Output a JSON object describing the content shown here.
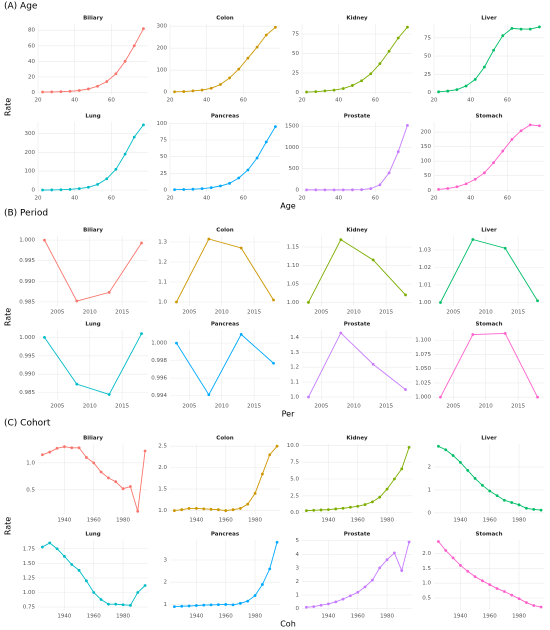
{
  "sections": [
    {
      "label": "(A) Age",
      "y_label": "Rate",
      "x_label": "Age"
    },
    {
      "label": "(B) Period",
      "y_label": "Rate",
      "x_label": "Per"
    },
    {
      "label": "(C) Cohort",
      "y_label": "Rate",
      "x_label": "Coh"
    }
  ],
  "chart_data": [
    {
      "type": "line",
      "title": "Biliary",
      "color": "#F8766D",
      "x": [
        22.5,
        27.5,
        32.5,
        37.5,
        42.5,
        47.5,
        52.5,
        57.5,
        62.5,
        67.5,
        72.5,
        77.5
      ],
      "values": [
        0.5,
        0.7,
        1,
        1.5,
        2.5,
        4.5,
        8,
        14,
        24,
        40,
        60,
        82
      ],
      "xlim": [
        20,
        80
      ],
      "xticks": [
        20,
        40,
        60
      ],
      "ylim": [
        -2,
        88
      ],
      "yticks": [
        0,
        20,
        40,
        60,
        80
      ],
      "grid": true
    },
    {
      "type": "line",
      "title": "Colon",
      "color": "#CD9600",
      "x": [
        22.5,
        27.5,
        32.5,
        37.5,
        42.5,
        47.5,
        52.5,
        57.5,
        62.5,
        67.5,
        72.5,
        77.5
      ],
      "values": [
        2,
        3,
        6,
        10,
        18,
        35,
        65,
        105,
        155,
        205,
        260,
        295
      ],
      "xlim": [
        20,
        80
      ],
      "xticks": [
        20,
        40,
        60
      ],
      "ylim": [
        -8,
        310
      ],
      "yticks": [
        0,
        100,
        200,
        300
      ],
      "grid": true
    },
    {
      "type": "line",
      "title": "Kidney",
      "color": "#7CAE00",
      "x": [
        22.5,
        27.5,
        32.5,
        37.5,
        42.5,
        47.5,
        52.5,
        57.5,
        62.5,
        67.5,
        72.5,
        77.5
      ],
      "values": [
        0.5,
        1,
        2,
        3,
        5,
        9,
        15,
        24,
        37,
        53,
        70,
        84
      ],
      "xlim": [
        20,
        80
      ],
      "xticks": [
        20,
        40,
        60
      ],
      "ylim": [
        -2,
        88
      ],
      "yticks": [
        0,
        25,
        50,
        75
      ],
      "grid": true
    },
    {
      "type": "line",
      "title": "Liver",
      "color": "#00BE67",
      "x": [
        22.5,
        27.5,
        32.5,
        37.5,
        42.5,
        47.5,
        52.5,
        57.5,
        62.5,
        67.5,
        72.5,
        77.5
      ],
      "values": [
        1,
        2,
        4,
        9,
        18,
        35,
        58,
        78,
        88,
        87,
        87,
        90
      ],
      "xlim": [
        20,
        80
      ],
      "xticks": [
        20,
        40,
        60
      ],
      "ylim": [
        -2,
        94
      ],
      "yticks": [
        0,
        25,
        50,
        75
      ],
      "grid": true
    },
    {
      "type": "line",
      "title": "Lung",
      "color": "#00BCC8",
      "x": [
        22.5,
        27.5,
        32.5,
        37.5,
        42.5,
        47.5,
        52.5,
        57.5,
        62.5,
        67.5,
        72.5,
        77.5
      ],
      "values": [
        0.5,
        1,
        2,
        4,
        8,
        15,
        30,
        60,
        110,
        190,
        280,
        345
      ],
      "xlim": [
        20,
        80
      ],
      "xticks": [
        20,
        40,
        60
      ],
      "ylim": [
        -10,
        360
      ],
      "yticks": [
        0,
        100,
        200,
        300
      ],
      "grid": true
    },
    {
      "type": "line",
      "title": "Pancreas",
      "color": "#00A9FF",
      "x": [
        22.5,
        27.5,
        32.5,
        37.5,
        42.5,
        47.5,
        52.5,
        57.5,
        62.5,
        67.5,
        72.5,
        77.5
      ],
      "values": [
        0.5,
        0.8,
        1.2,
        2,
        3.5,
        6,
        10,
        18,
        30,
        48,
        72,
        95
      ],
      "xlim": [
        20,
        80
      ],
      "xticks": [
        20,
        40,
        60
      ],
      "ylim": [
        -3,
        102
      ],
      "yticks": [
        0,
        25,
        50,
        75,
        100
      ],
      "grid": true
    },
    {
      "type": "line",
      "title": "Prostate",
      "color": "#C77CFF",
      "x": [
        22.5,
        27.5,
        32.5,
        37.5,
        42.5,
        47.5,
        52.5,
        57.5,
        62.5,
        67.5,
        72.5,
        77.5
      ],
      "values": [
        0,
        0,
        0,
        0,
        0,
        1,
        5,
        30,
        120,
        400,
        900,
        1520
      ],
      "xlim": [
        20,
        80
      ],
      "xticks": [
        20,
        40,
        60
      ],
      "ylim": [
        -50,
        1600
      ],
      "yticks": [
        0,
        500,
        1000,
        1500
      ],
      "grid": true
    },
    {
      "type": "line",
      "title": "Stomach",
      "color": "#FF61CC",
      "x": [
        22.5,
        27.5,
        32.5,
        37.5,
        42.5,
        47.5,
        52.5,
        57.5,
        62.5,
        67.5,
        72.5,
        77.5
      ],
      "values": [
        3,
        6,
        12,
        22,
        38,
        60,
        95,
        135,
        175,
        205,
        225,
        222
      ],
      "xlim": [
        20,
        80
      ],
      "xticks": [
        20,
        40,
        60
      ],
      "ylim": [
        -6,
        235
      ],
      "yticks": [
        0,
        50,
        100,
        150,
        200
      ],
      "grid": true
    },
    {
      "type": "line",
      "title": "Biliary",
      "color": "#F8766D",
      "x": [
        2003,
        2008,
        2013,
        2018
      ],
      "values": [
        1.0,
        0.9852,
        0.9873,
        0.9993
      ],
      "xlim": [
        2002,
        2019
      ],
      "xticks": [
        2005,
        2010,
        2015
      ],
      "ylim": [
        0.984,
        1.001
      ],
      "yticks": [
        0.985,
        {
          "value": 0.99,
          "label": "0.990"
        },
        0.995,
        {
          "value": 1,
          "label": "1.000"
        }
      ],
      "grid": true
    },
    {
      "type": "line",
      "title": "Colon",
      "color": "#CD9600",
      "x": [
        2003,
        2008,
        2013,
        2018
      ],
      "values": [
        1.0,
        1.315,
        1.27,
        1.01
      ],
      "xlim": [
        2002,
        2019
      ],
      "xticks": [
        2005,
        2010,
        2015
      ],
      "ylim": [
        0.98,
        1.33
      ],
      "yticks": [
        {
          "value": 1,
          "label": "1.0"
        },
        1.1,
        1.2,
        1.3
      ],
      "grid": true
    },
    {
      "type": "line",
      "title": "Kidney",
      "color": "#7CAE00",
      "x": [
        2003,
        2008,
        2013,
        2018
      ],
      "values": [
        1.0,
        1.17,
        1.115,
        1.02
      ],
      "xlim": [
        2002,
        2019
      ],
      "xticks": [
        2005,
        2010,
        2015
      ],
      "ylim": [
        0.99,
        1.18
      ],
      "yticks": [
        {
          "value": 1,
          "label": "1.00"
        },
        1.05,
        {
          "value": 1.1,
          "label": "1.10"
        },
        1.15
      ],
      "grid": true
    },
    {
      "type": "line",
      "title": "Liver",
      "color": "#00BE67",
      "x": [
        2003,
        2008,
        2013,
        2018
      ],
      "values": [
        1.0,
        1.036,
        1.031,
        1.001
      ],
      "xlim": [
        2002,
        2019
      ],
      "xticks": [
        2005,
        2010,
        2015
      ],
      "ylim": [
        0.998,
        1.038
      ],
      "yticks": [
        {
          "value": 1,
          "label": "1.00"
        },
        1.01,
        1.02,
        1.03
      ],
      "grid": true
    },
    {
      "type": "line",
      "title": "Lung",
      "color": "#00BCC8",
      "x": [
        2003,
        2008,
        2013,
        2018
      ],
      "values": [
        1.0,
        0.9873,
        0.9845,
        1.001
      ],
      "xlim": [
        2002,
        2019
      ],
      "xticks": [
        2005,
        2010,
        2015
      ],
      "ylim": [
        0.983,
        1.002
      ],
      "yticks": [
        0.985,
        {
          "value": 0.99,
          "label": "0.990"
        },
        0.995,
        {
          "value": 1,
          "label": "1.000"
        }
      ],
      "grid": true
    },
    {
      "type": "line",
      "title": "Pancreas",
      "color": "#00A9FF",
      "x": [
        2003,
        2008,
        2013,
        2018
      ],
      "values": [
        1.0,
        0.9941,
        1.001,
        0.9977
      ],
      "xlim": [
        2002,
        2019
      ],
      "xticks": [
        2005,
        2010,
        2015
      ],
      "ylim": [
        0.9935,
        1.0015
      ],
      "yticks": [
        0.994,
        0.996,
        0.998,
        {
          "value": 1,
          "label": "1.000"
        }
      ],
      "grid": true
    },
    {
      "type": "line",
      "title": "Prostate",
      "color": "#C77CFF",
      "x": [
        2003,
        2008,
        2013,
        2018
      ],
      "values": [
        1.0,
        1.43,
        1.22,
        1.05
      ],
      "xlim": [
        2002,
        2019
      ],
      "xticks": [
        2005,
        2010,
        2015
      ],
      "ylim": [
        0.98,
        1.45
      ],
      "yticks": [
        {
          "value": 1,
          "label": "1.0"
        },
        1.1,
        1.2,
        1.3,
        1.4
      ],
      "grid": true
    },
    {
      "type": "line",
      "title": "Stomach",
      "color": "#FF61CC",
      "x": [
        2003,
        2008,
        2013,
        2018
      ],
      "values": [
        1.0,
        1.11,
        1.112,
        1.0
      ],
      "xlim": [
        2002,
        2019
      ],
      "xticks": [
        2005,
        2010,
        2015
      ],
      "ylim": [
        0.995,
        1.118
      ],
      "yticks": [
        {
          "value": 1,
          "label": "1.000"
        },
        1.025,
        {
          "value": 1.05,
          "label": "1.050"
        },
        1.075,
        {
          "value": 1.1,
          "label": "1.100"
        }
      ],
      "grid": true
    },
    {
      "type": "line",
      "title": "Biliary",
      "color": "#F8766D",
      "x": [
        1925,
        1930,
        1935,
        1940,
        1945,
        1950,
        1955,
        1960,
        1965,
        1970,
        1975,
        1980,
        1985,
        1990,
        1995
      ],
      "values": [
        1.15,
        1.2,
        1.27,
        1.3,
        1.28,
        1.28,
        1.1,
        1.0,
        0.83,
        0.72,
        0.65,
        0.52,
        0.56,
        0.1,
        1.22
      ],
      "xlim": [
        1922,
        1997
      ],
      "xticks": [
        1940,
        1960,
        1980
      ],
      "ylim": [
        0.05,
        1.35
      ],
      "yticks": [
        0.5,
        {
          "value": 1,
          "label": "1.0"
        }
      ],
      "grid": true
    },
    {
      "type": "line",
      "title": "Colon",
      "color": "#CD9600",
      "x": [
        1925,
        1930,
        1935,
        1940,
        1945,
        1950,
        1955,
        1960,
        1965,
        1970,
        1975,
        1980,
        1985,
        1990,
        1995
      ],
      "values": [
        1.0,
        1.02,
        1.05,
        1.05,
        1.04,
        1.03,
        1.02,
        1.0,
        1.02,
        1.05,
        1.15,
        1.4,
        1.85,
        2.3,
        2.5
      ],
      "xlim": [
        1922,
        1997
      ],
      "xticks": [
        1940,
        1960,
        1980
      ],
      "ylim": [
        0.92,
        2.55
      ],
      "yticks": [
        {
          "value": 1,
          "label": "1.0"
        },
        1.5,
        {
          "value": 2,
          "label": "2.0"
        },
        2.5
      ],
      "grid": true
    },
    {
      "type": "line",
      "title": "Kidney",
      "color": "#7CAE00",
      "x": [
        1925,
        1930,
        1935,
        1940,
        1945,
        1950,
        1955,
        1960,
        1965,
        1970,
        1975,
        1980,
        1985,
        1990,
        1995
      ],
      "values": [
        0.3,
        0.35,
        0.4,
        0.45,
        0.55,
        0.65,
        0.8,
        0.95,
        1.2,
        1.6,
        2.3,
        3.5,
        5.0,
        6.5,
        9.7
      ],
      "xlim": [
        1922,
        1997
      ],
      "xticks": [
        1940,
        1960,
        1980
      ],
      "ylim": [
        -0.2,
        10.2
      ],
      "yticks": [
        {
          "value": 0,
          "label": "0.0"
        },
        2.5,
        {
          "value": 5,
          "label": "5.0"
        },
        7.5,
        {
          "value": 10,
          "label": "10.0"
        }
      ],
      "grid": true
    },
    {
      "type": "line",
      "title": "Liver",
      "color": "#00BE67",
      "x": [
        1925,
        1930,
        1935,
        1940,
        1945,
        1950,
        1955,
        1960,
        1965,
        1970,
        1975,
        1980,
        1985,
        1990,
        1995
      ],
      "values": [
        2.9,
        2.75,
        2.5,
        2.2,
        1.85,
        1.5,
        1.2,
        0.95,
        0.75,
        0.55,
        0.45,
        0.35,
        0.2,
        0.15,
        0.12
      ],
      "xlim": [
        1922,
        1997
      ],
      "xticks": [
        1940,
        1960,
        1980
      ],
      "ylim": [
        -0.05,
        3.0
      ],
      "yticks": [
        0,
        1,
        2
      ],
      "grid": true
    },
    {
      "type": "line",
      "title": "Lung",
      "color": "#00BCC8",
      "x": [
        1925,
        1930,
        1935,
        1940,
        1945,
        1950,
        1955,
        1960,
        1965,
        1970,
        1975,
        1980,
        1985,
        1990,
        1995
      ],
      "values": [
        1.78,
        1.85,
        1.75,
        1.62,
        1.48,
        1.38,
        1.2,
        1.0,
        0.88,
        0.8,
        0.8,
        0.79,
        0.78,
        1.0,
        1.12
      ],
      "xlim": [
        1922,
        1997
      ],
      "xticks": [
        1940,
        1960,
        1980
      ],
      "ylim": [
        0.7,
        1.9
      ],
      "yticks": [
        0.75,
        {
          "value": 1,
          "label": "1.00"
        },
        1.25,
        {
          "value": 1.5,
          "label": "1.50"
        },
        1.75
      ],
      "grid": true
    },
    {
      "type": "line",
      "title": "Pancreas",
      "color": "#00A9FF",
      "x": [
        1925,
        1930,
        1935,
        1940,
        1945,
        1950,
        1955,
        1960,
        1965,
        1970,
        1975,
        1980,
        1985,
        1990,
        1995
      ],
      "values": [
        0.9,
        0.92,
        0.93,
        0.95,
        0.97,
        0.98,
        0.99,
        1.0,
        0.98,
        1.05,
        1.15,
        1.4,
        1.9,
        2.6,
        3.8
      ],
      "xlim": [
        1922,
        1997
      ],
      "xticks": [
        1940,
        1960,
        1980
      ],
      "ylim": [
        0.75,
        3.9
      ],
      "yticks": [
        1,
        2,
        3
      ],
      "grid": true
    },
    {
      "type": "line",
      "title": "Prostate",
      "color": "#C77CFF",
      "x": [
        1925,
        1930,
        1935,
        1940,
        1945,
        1950,
        1955,
        1960,
        1965,
        1970,
        1975,
        1980,
        1985,
        1990,
        1995
      ],
      "values": [
        0.1,
        0.15,
        0.25,
        0.35,
        0.5,
        0.7,
        0.95,
        1.2,
        1.6,
        2.1,
        3.0,
        3.6,
        4.1,
        2.8,
        4.9
      ],
      "xlim": [
        1922,
        1997
      ],
      "xticks": [
        1940,
        1960,
        1980
      ],
      "ylim": [
        -0.1,
        5.05
      ],
      "yticks": [
        0,
        1,
        2,
        3,
        4,
        5
      ],
      "grid": true
    },
    {
      "type": "line",
      "title": "Stomach",
      "color": "#FF61CC",
      "x": [
        1925,
        1930,
        1935,
        1940,
        1945,
        1950,
        1955,
        1960,
        1965,
        1970,
        1975,
        1980,
        1985,
        1990,
        1995
      ],
      "values": [
        2.4,
        2.1,
        1.85,
        1.6,
        1.4,
        1.22,
        1.08,
        0.95,
        0.82,
        0.72,
        0.6,
        0.48,
        0.35,
        0.25,
        0.2
      ],
      "xlim": [
        1922,
        1997
      ],
      "xticks": [
        1940,
        1960,
        1980
      ],
      "ylim": [
        0.1,
        2.45
      ],
      "yticks": [
        0.5,
        {
          "value": 1,
          "label": "1.0"
        },
        1.5,
        {
          "value": 2,
          "label": "2.0"
        }
      ],
      "grid": true
    }
  ]
}
